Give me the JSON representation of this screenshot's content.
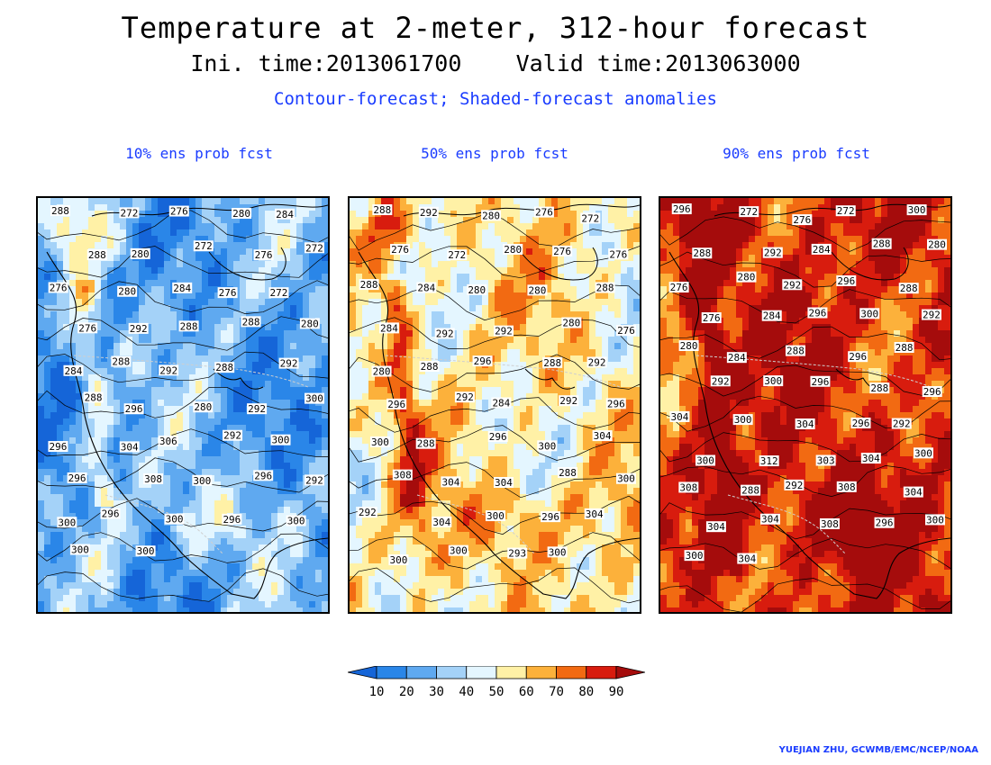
{
  "title": "Temperature at 2-meter, 312-hour forecast",
  "subtitle": "Ini. time:2013061700    Valid time:2013063000",
  "description": "Contour-forecast; Shaded-forecast anomalies",
  "credit": "YUEJIAN ZHU, GCWMB/EMC/NCEP/NOAA",
  "colors": {
    "bin_0": "#1565d8",
    "bin_1": "#2a86e8",
    "bin_2": "#5fa9f0",
    "bin_3": "#a4d2f8",
    "bin_4": "#e4f6ff",
    "bin_5": "#fff1a6",
    "bin_6": "#fcb13b",
    "bin_7": "#f26a12",
    "bin_8": "#d81c0e",
    "bin_9": "#a50c0c"
  },
  "colorbar": {
    "ticks": [
      "10",
      "20",
      "30",
      "40",
      "50",
      "60",
      "70",
      "80",
      "90"
    ]
  },
  "panels": [
    {
      "title": "10% ens prob fcst",
      "base_level": 2.0,
      "labels": [
        "288",
        "272",
        "276",
        "280",
        "284",
        "288",
        "280",
        "272",
        "276",
        "272",
        "276",
        "280",
        "284",
        "276",
        "272",
        "276",
        "292",
        "288",
        "288",
        "280",
        "284",
        "288",
        "292",
        "288",
        "292",
        "288",
        "296",
        "280",
        "292",
        "300",
        "296",
        "304",
        "306",
        "292",
        "300",
        "296",
        "308",
        "300",
        "296",
        "292",
        "300",
        "296",
        "300",
        "296",
        "300",
        "300",
        "300"
      ]
    },
    {
      "title": "50% ens prob fcst",
      "base_level": 5.0,
      "labels": [
        "288",
        "292",
        "280",
        "276",
        "272",
        "276",
        "272",
        "280",
        "276",
        "276",
        "288",
        "284",
        "280",
        "280",
        "288",
        "284",
        "292",
        "292",
        "280",
        "276",
        "280",
        "288",
        "296",
        "288",
        "292",
        "296",
        "292",
        "284",
        "292",
        "296",
        "300",
        "288",
        "296",
        "300",
        "304",
        "308",
        "304",
        "304",
        "288",
        "300",
        "292",
        "304",
        "300",
        "296",
        "304",
        "300",
        "300",
        "293",
        "300"
      ]
    },
    {
      "title": "90% ens prob fcst",
      "base_level": 8.0,
      "labels": [
        "296",
        "272",
        "276",
        "272",
        "300",
        "288",
        "292",
        "284",
        "288",
        "280",
        "276",
        "280",
        "292",
        "296",
        "288",
        "276",
        "284",
        "296",
        "300",
        "292",
        "280",
        "284",
        "288",
        "296",
        "288",
        "292",
        "300",
        "296",
        "288",
        "296",
        "304",
        "300",
        "304",
        "296",
        "292",
        "300",
        "312",
        "303",
        "304",
        "300",
        "308",
        "288",
        "292",
        "308",
        "304",
        "304",
        "304",
        "308",
        "296",
        "300",
        "300",
        "304"
      ]
    }
  ]
}
